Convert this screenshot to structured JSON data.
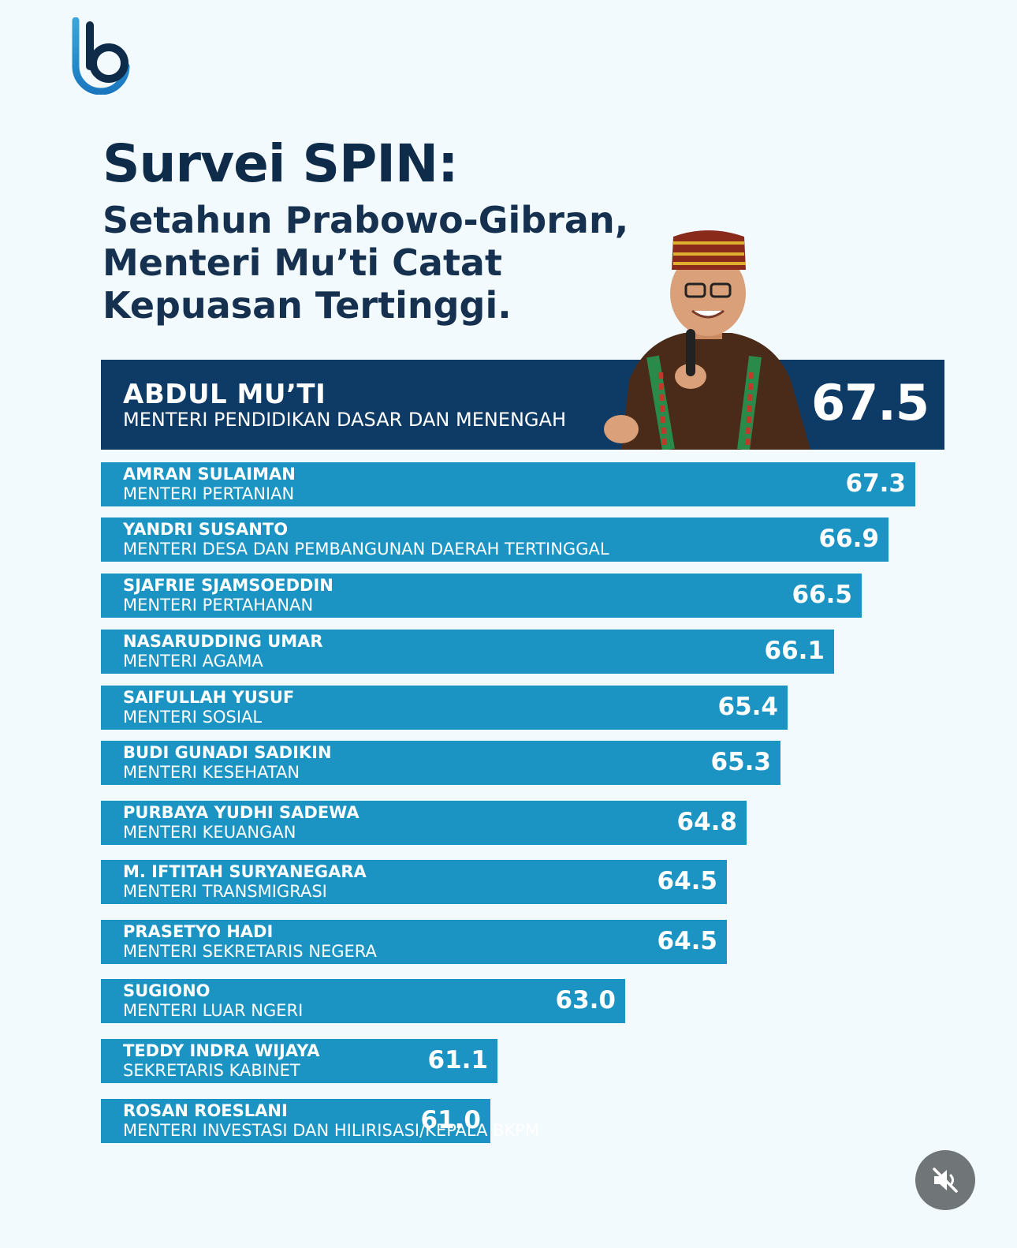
{
  "brand": {
    "logo_icon": "b-logo-icon",
    "color_dark": "#0e3a66",
    "color_light": "#1b94c4"
  },
  "header": {
    "title": "Survei SPIN:",
    "subtitle_lines": [
      "Setahun Prabowo-Gibran,",
      "Menteri Mu’ti Catat",
      "Kepuasan Tertinggi."
    ]
  },
  "chart_data": {
    "type": "bar",
    "orientation": "horizontal",
    "highlight_color": "#0e3a66",
    "bar_color": "#1b94c4",
    "highlight": {
      "name": "ABDUL MU’TI",
      "role": "MENTERI PENDIDIKAN DASAR DAN MENENGAH",
      "value": 67.5
    },
    "bars": [
      {
        "name": "AMRAN SULAIMAN",
        "role": "MENTERI PERTANIAN",
        "value": 67.3
      },
      {
        "name": "YANDRI SUSANTO",
        "role": "MENTERI DESA DAN PEMBANGUNAN DAERAH TERTINGGAL",
        "value": 66.9
      },
      {
        "name": "SJAFRIE SJAMSOEDDIN",
        "role": "MENTERI PERTAHANAN",
        "value": 66.5
      },
      {
        "name": "NASARUDDING UMAR",
        "role": "MENTERI AGAMA",
        "value": 66.1
      },
      {
        "name": "SAIFULLAH YUSUF",
        "role": "MENTERI SOSIAL",
        "value": 65.4
      },
      {
        "name": "BUDI GUNADI SADIKIN",
        "role": "MENTERI KESEHATAN",
        "value": 65.3
      },
      {
        "name": "PURBAYA YUDHI SADEWA",
        "role": "MENTERI KEUANGAN",
        "value": 64.8
      },
      {
        "name": "M. IFTITAH SURYANEGARA",
        "role": "MENTERI TRANSMIGRASI",
        "value": 64.5
      },
      {
        "name": "PRASETYO HADI",
        "role": "MENTERI SEKRETARIS NEGERA",
        "value": 64.5
      },
      {
        "name": "SUGIONO",
        "role": "MENTERI LUAR NGERI",
        "value": 63.0
      },
      {
        "name": "TEDDY INDRA WIJAYA",
        "role": "SEKRETARIS KABINET",
        "value": 61.1
      },
      {
        "name": "ROSAN ROESLANI",
        "role": "MENTERI INVESTASI DAN HILIRISASI/KEPALA BKPM",
        "value": 61.0
      }
    ]
  },
  "controls": {
    "mute_icon": "muted-speaker-icon"
  }
}
